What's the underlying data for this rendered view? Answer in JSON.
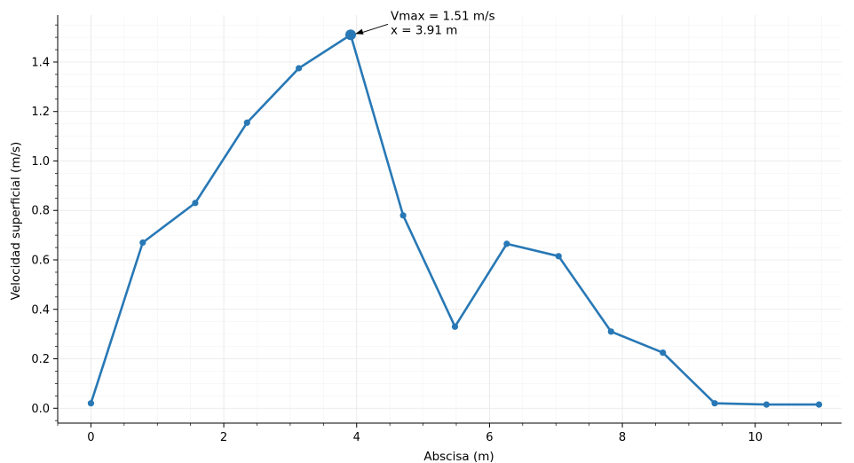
{
  "chart_data": {
    "type": "line",
    "xlabel": "Abscisa (m)",
    "ylabel": "Velocidad superficial (m/s)",
    "xlim": [
      -0.5,
      11.3
    ],
    "ylim": [
      -0.06,
      1.59
    ],
    "x_ticks": [
      0,
      2,
      4,
      6,
      8,
      10
    ],
    "y_ticks": [
      0.0,
      0.2,
      0.4,
      0.6,
      0.8,
      1.0,
      1.2,
      1.4
    ],
    "x_tick_labels": [
      "0",
      "2",
      "4",
      "6",
      "8",
      "10"
    ],
    "y_tick_labels": [
      "0.0",
      "0.2",
      "0.4",
      "0.6",
      "0.8",
      "1.0",
      "1.2",
      "1.4"
    ],
    "grid": true,
    "series": [
      {
        "color": "#2878b5",
        "x": [
          0.0,
          0.78,
          1.57,
          2.35,
          3.13,
          3.91,
          4.7,
          5.48,
          6.26,
          7.04,
          7.83,
          8.61,
          9.39,
          10.17,
          10.96
        ],
        "y": [
          0.02,
          0.67,
          0.83,
          1.155,
          1.375,
          1.51,
          0.78,
          0.33,
          0.665,
          0.615,
          0.31,
          0.225,
          0.02,
          0.015,
          0.015
        ]
      }
    ],
    "annotation": {
      "line1": "Vmax = 1.51 m/s",
      "line2": "x = 3.91 m",
      "point_x": 3.91,
      "point_y": 1.51
    }
  }
}
